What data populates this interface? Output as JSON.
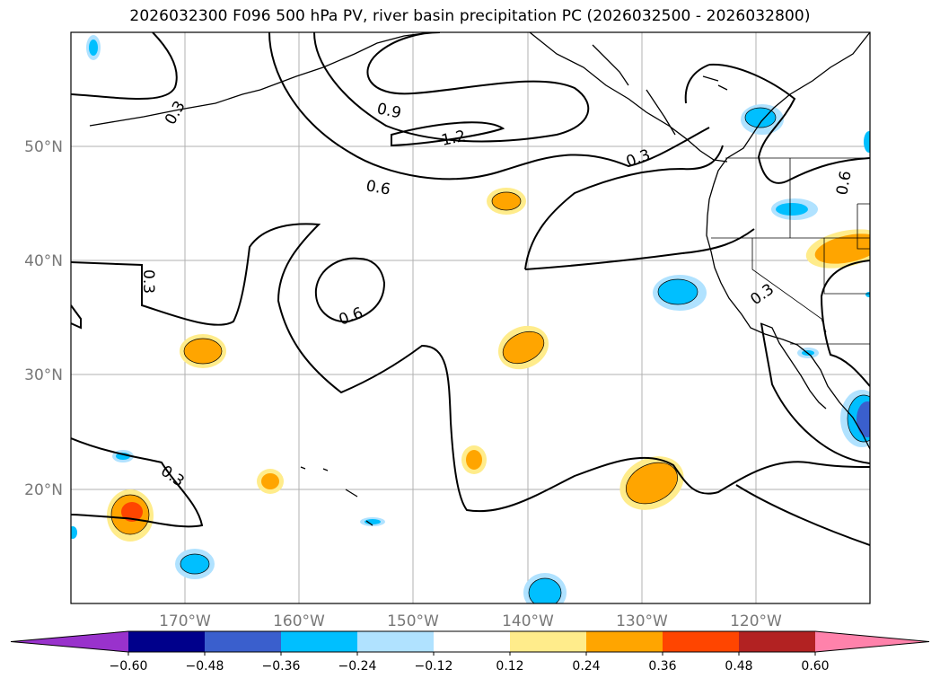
{
  "title": "2026032300 F096 500 hPa PV, river basin precipitation PC (2026032500 - 2026032800)",
  "lat_labels": [
    "50°N",
    "40°N",
    "30°N",
    "20°N"
  ],
  "lon_labels": [
    "170°W",
    "160°W",
    "150°W",
    "140°W",
    "130°W",
    "120°W"
  ],
  "contour_labels": [
    "0.3",
    "0.9",
    "1.2",
    "0.3",
    "0.6",
    "0.6",
    "0.3",
    "0.6",
    "0.3",
    "0.3"
  ],
  "colorbar": {
    "ticks": [
      "−0.60",
      "−0.48",
      "−0.36",
      "−0.24",
      "−0.12",
      "0.12",
      "0.24",
      "0.36",
      "0.48",
      "0.60"
    ],
    "colors": [
      "#9932cc",
      "#00008b",
      "#3a5fcd",
      "#00bfff",
      "#b0e2ff",
      "#ffffff",
      "#ffec8b",
      "#ffa500",
      "#ff4500",
      "#b22222",
      "#ff82ab"
    ]
  },
  "chart_data": {
    "type": "contour map",
    "region": "North Pacific / western North America",
    "lat_range": [
      10,
      60
    ],
    "lon_range": [
      -180,
      -110
    ],
    "pv_contour_levels": [
      0.3,
      0.6,
      0.9,
      1.2
    ],
    "precip_pc_levels": [
      -0.6,
      -0.48,
      -0.36,
      -0.24,
      -0.12,
      0.12,
      0.24,
      0.36,
      0.48,
      0.6
    ]
  }
}
